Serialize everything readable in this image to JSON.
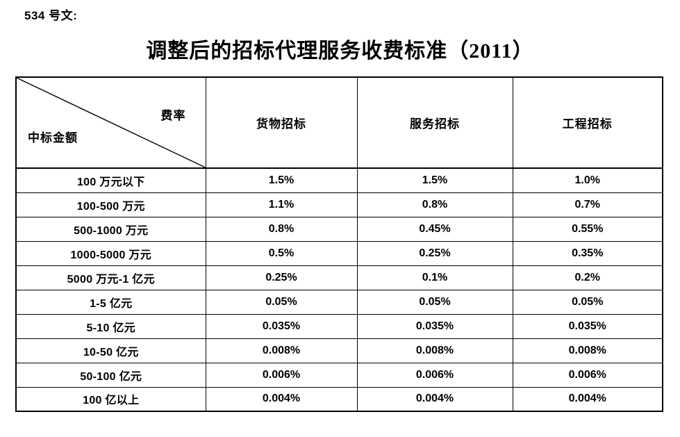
{
  "page": {
    "doc_ref": "534 号文:",
    "title": "调整后的招标代理服务收费标准（2011）"
  },
  "table": {
    "corner": {
      "top_right": "费率",
      "bottom_left": "中标金额"
    },
    "columns": [
      "货物招标",
      "服务招标",
      "工程招标"
    ],
    "rows": [
      {
        "label": "100 万元以下",
        "values": [
          "1.5%",
          "1.5%",
          "1.0%"
        ]
      },
      {
        "label": "100-500 万元",
        "values": [
          "1.1%",
          "0.8%",
          "0.7%"
        ]
      },
      {
        "label": "500-1000 万元",
        "values": [
          "0.8%",
          "0.45%",
          "0.55%"
        ]
      },
      {
        "label": "1000-5000 万元",
        "values": [
          "0.5%",
          "0.25%",
          "0.35%"
        ]
      },
      {
        "label": "5000 万元-1 亿元",
        "values": [
          "0.25%",
          "0.1%",
          "0.2%"
        ]
      },
      {
        "label": "1-5 亿元",
        "values": [
          "0.05%",
          "0.05%",
          "0.05%"
        ]
      },
      {
        "label": "5-10 亿元",
        "values": [
          "0.035%",
          "0.035%",
          "0.035%"
        ]
      },
      {
        "label": "10-50 亿元",
        "values": [
          "0.008%",
          "0.008%",
          "0.008%"
        ]
      },
      {
        "label": "50-100 亿元",
        "values": [
          "0.006%",
          "0.006%",
          "0.006%"
        ]
      },
      {
        "label": "100 亿以上",
        "values": [
          "0.004%",
          "0.004%",
          "0.004%"
        ]
      }
    ]
  },
  "colors": {
    "text": "#000000",
    "border": "#000000",
    "background": "#ffffff"
  }
}
